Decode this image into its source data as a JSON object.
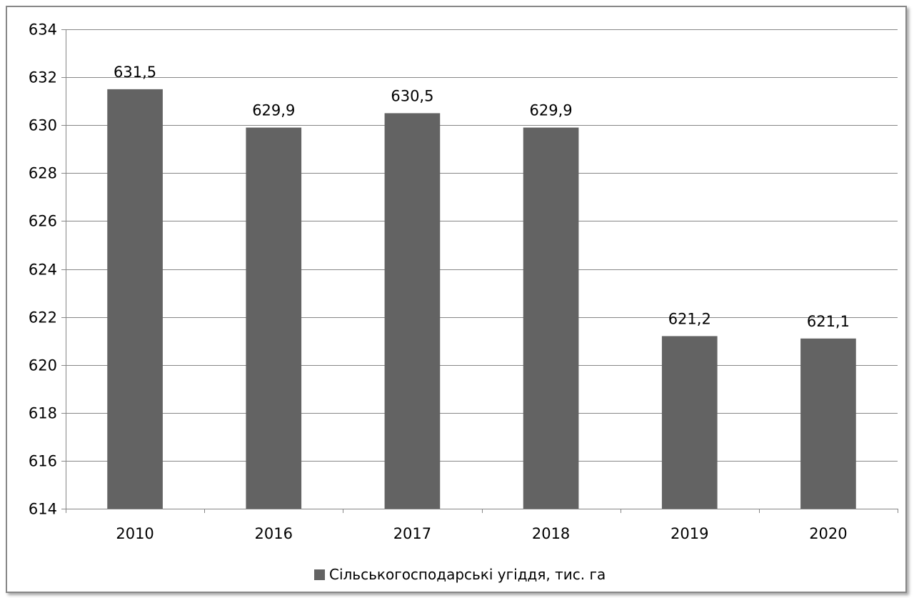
{
  "chart_data": {
    "type": "bar",
    "title": "",
    "xlabel": "",
    "ylabel": "",
    "categories": [
      "2010",
      "2016",
      "2017",
      "2018",
      "2019",
      "2020"
    ],
    "series": [
      {
        "name": "Сільськогосподарські угіддя, тис. га",
        "values": [
          631.5,
          629.9,
          630.5,
          629.9,
          621.2,
          621.1
        ],
        "labels": [
          "631,5",
          "629,9",
          "630,5",
          "629,9",
          "621,2",
          "621,1"
        ],
        "color": "#636363"
      }
    ],
    "ylim": [
      614,
      634
    ],
    "yticks": [
      "614",
      "616",
      "618",
      "620",
      "622",
      "624",
      "626",
      "628",
      "630",
      "632",
      "634"
    ],
    "grid": true,
    "legend_position": "bottom"
  }
}
